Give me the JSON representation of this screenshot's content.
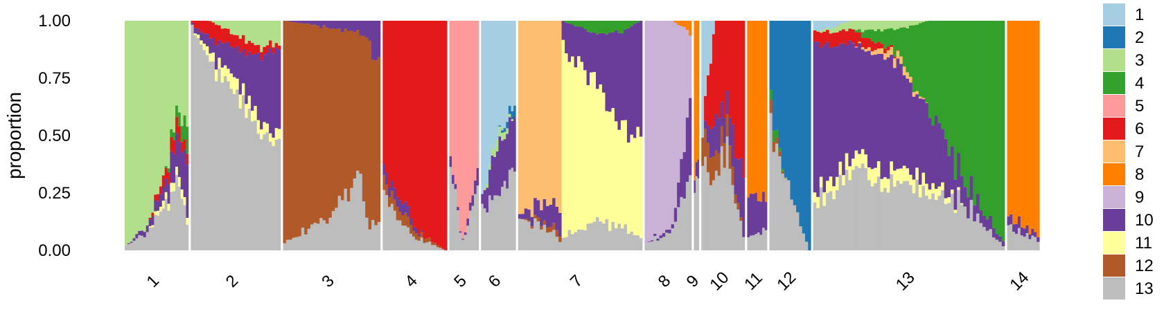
{
  "chart_data": {
    "type": "area",
    "ylabel": "proportion",
    "ylim": [
      0,
      1
    ],
    "yticks": [
      "0.00",
      "0.25",
      "0.50",
      "0.75",
      "1.00"
    ],
    "stack_order": [
      "13",
      "12",
      "11",
      "10",
      "9",
      "8",
      "7",
      "6",
      "5",
      "4",
      "3",
      "2",
      "1"
    ],
    "legend": {
      "position": "right",
      "entries": [
        {
          "label": "1",
          "color": "#a6cee3"
        },
        {
          "label": "2",
          "color": "#1f78b4"
        },
        {
          "label": "3",
          "color": "#b2df8a"
        },
        {
          "label": "4",
          "color": "#33a02c"
        },
        {
          "label": "5",
          "color": "#fb9a99"
        },
        {
          "label": "6",
          "color": "#e31a1c"
        },
        {
          "label": "7",
          "color": "#fdbf6f"
        },
        {
          "label": "8",
          "color": "#ff7f00"
        },
        {
          "label": "9",
          "color": "#cab2d6"
        },
        {
          "label": "10",
          "color": "#6a3d9a"
        },
        {
          "label": "11",
          "color": "#ffff99"
        },
        {
          "label": "12",
          "color": "#b15928"
        },
        {
          "label": "13",
          "color": "#bdbdbd"
        }
      ]
    },
    "groups": [
      {
        "label": "1",
        "weight": 95,
        "n": 24,
        "profiles": [
          {
            "f": 0.0,
            "p": {
              "13": 0.02,
              "3": 0.98
            }
          },
          {
            "f": 0.35,
            "p": {
              "13": 0.08,
              "10": 0.03,
              "3": 0.89
            }
          },
          {
            "f": 0.6,
            "p": {
              "13": 0.18,
              "11": 0.03,
              "10": 0.06,
              "6": 0.05,
              "3": 0.68
            }
          },
          {
            "f": 0.85,
            "p": {
              "13": 0.28,
              "11": 0.04,
              "10": 0.15,
              "6": 0.06,
              "4": 0.05,
              "3": 0.42
            }
          },
          {
            "f": 1.0,
            "p": {
              "13": 0.12,
              "11": 0.03,
              "10": 0.2,
              "6": 0.05,
              "4": 0.1,
              "3": 0.5
            }
          }
        ]
      },
      {
        "label": "2",
        "weight": 134,
        "n": 30,
        "profiles": [
          {
            "f": 0.0,
            "p": {
              "13": 0.98,
              "10": 0.01,
              "6": 0.01
            }
          },
          {
            "f": 0.2,
            "p": {
              "13": 0.82,
              "11": 0.04,
              "10": 0.06,
              "6": 0.08
            }
          },
          {
            "f": 0.5,
            "p": {
              "13": 0.68,
              "11": 0.06,
              "10": 0.14,
              "6": 0.06,
              "3": 0.06
            }
          },
          {
            "f": 0.8,
            "p": {
              "13": 0.52,
              "11": 0.05,
              "10": 0.27,
              "6": 0.04,
              "3": 0.12
            }
          },
          {
            "f": 1.0,
            "p": {
              "13": 0.44,
              "11": 0.04,
              "10": 0.4,
              "6": 0.02,
              "3": 0.1
            }
          }
        ]
      },
      {
        "label": "3",
        "weight": 145,
        "n": 32,
        "profiles": [
          {
            "f": 0.0,
            "p": {
              "13": 0.03,
              "12": 0.97
            }
          },
          {
            "f": 0.5,
            "p": {
              "13": 0.15,
              "12": 0.82,
              "10": 0.03
            }
          },
          {
            "f": 0.78,
            "p": {
              "13": 0.35,
              "12": 0.6,
              "10": 0.05
            }
          },
          {
            "f": 0.9,
            "p": {
              "13": 0.12,
              "12": 0.78,
              "10": 0.1
            }
          },
          {
            "f": 1.0,
            "p": {
              "13": 0.12,
              "12": 0.7,
              "10": 0.18
            }
          }
        ]
      },
      {
        "label": "4",
        "weight": 96,
        "n": 24,
        "profiles": [
          {
            "f": 0.0,
            "p": {
              "13": 0.25,
              "12": 0.05,
              "10": 0.05,
              "6": 0.65
            }
          },
          {
            "f": 0.3,
            "p": {
              "13": 0.1,
              "12": 0.05,
              "10": 0.05,
              "6": 0.8
            }
          },
          {
            "f": 0.65,
            "p": {
              "13": 0.04,
              "12": 0.02,
              "6": 0.94
            }
          },
          {
            "f": 1.0,
            "p": {
              "13": 0.0,
              "6": 1.0
            }
          }
        ]
      },
      {
        "label": "5",
        "weight": 44,
        "n": 12,
        "profiles": [
          {
            "f": 0.0,
            "p": {
              "13": 0.4,
              "10": 0.05,
              "5": 0.55
            }
          },
          {
            "f": 0.4,
            "p": {
              "13": 0.05,
              "5": 0.95
            }
          },
          {
            "f": 0.7,
            "p": {
              "13": 0.12,
              "10": 0.03,
              "5": 0.85
            }
          },
          {
            "f": 1.0,
            "p": {
              "13": 0.3,
              "10": 0.08,
              "5": 0.62
            }
          }
        ]
      },
      {
        "label": "6",
        "weight": 52,
        "n": 14,
        "profiles": [
          {
            "f": 0.0,
            "p": {
              "13": 0.2,
              "10": 0.05,
              "1": 0.75
            }
          },
          {
            "f": 0.5,
            "p": {
              "13": 0.25,
              "10": 0.2,
              "3": 0.05,
              "1": 0.5
            }
          },
          {
            "f": 1.0,
            "p": {
              "13": 0.35,
              "10": 0.2,
              "2": 0.05,
              "1": 0.4
            }
          }
        ]
      },
      {
        "label": "7",
        "weight": 185,
        "n": 40,
        "profiles": [
          {
            "f": 0.0,
            "p": {
              "13": 0.15,
              "10": 0.02,
              "7": 0.83
            }
          },
          {
            "f": 0.34,
            "p": {
              "13": 0.05,
              "12": 0.03,
              "10": 0.12,
              "7": 0.8
            }
          },
          {
            "f": 0.35,
            "p": {
              "13": 0.05,
              "11": 0.85,
              "10": 0.1
            }
          },
          {
            "f": 0.6,
            "p": {
              "13": 0.12,
              "11": 0.63,
              "10": 0.2,
              "4": 0.05
            }
          },
          {
            "f": 0.85,
            "p": {
              "13": 0.1,
              "11": 0.45,
              "10": 0.4,
              "4": 0.05
            }
          },
          {
            "f": 1.0,
            "p": {
              "13": 0.05,
              "11": 0.45,
              "10": 0.5
            }
          }
        ]
      },
      {
        "label": "8",
        "weight": 70,
        "n": 16,
        "profiles": [
          {
            "f": 0.0,
            "p": {
              "13": 0.03,
              "9": 0.97
            }
          },
          {
            "f": 0.6,
            "p": {
              "13": 0.08,
              "10": 0.02,
              "9": 0.9
            }
          },
          {
            "f": 1.0,
            "p": {
              "13": 0.35,
              "10": 0.3,
              "8": 0.05,
              "9": 0.3
            }
          }
        ]
      },
      {
        "label": "9",
        "weight": 8,
        "n": 3,
        "profiles": [
          {
            "f": 0.0,
            "p": {
              "13": 0.25,
              "10": 0.05,
              "8": 0.7
            }
          },
          {
            "f": 1.0,
            "p": {
              "13": 0.3,
              "10": 0.1,
              "8": 0.6
            }
          }
        ]
      },
      {
        "label": "10",
        "weight": 65,
        "n": 16,
        "profiles": [
          {
            "f": 0.0,
            "p": {
              "13": 0.35,
              "12": 0.15,
              "1": 0.5
            }
          },
          {
            "f": 0.3,
            "p": {
              "13": 0.3,
              "12": 0.1,
              "10": 0.15,
              "6": 0.45
            }
          },
          {
            "f": 0.6,
            "p": {
              "13": 0.45,
              "12": 0.1,
              "10": 0.1,
              "6": 0.35
            }
          },
          {
            "f": 1.0,
            "p": {
              "13": 0.05,
              "10": 0.25,
              "6": 0.7
            }
          }
        ]
      },
      {
        "label": "11",
        "weight": 30,
        "n": 8,
        "profiles": [
          {
            "f": 0.0,
            "p": {
              "13": 0.05,
              "10": 0.15,
              "8": 0.8
            }
          },
          {
            "f": 1.0,
            "p": {
              "13": 0.1,
              "10": 0.15,
              "8": 0.75
            }
          }
        ]
      },
      {
        "label": "12",
        "weight": 62,
        "n": 14,
        "profiles": [
          {
            "f": 0.0,
            "p": {
              "13": 0.55,
              "12": 0.05,
              "4": 0.05,
              "2": 0.35
            }
          },
          {
            "f": 0.4,
            "p": {
              "13": 0.28,
              "2": 0.72
            }
          },
          {
            "f": 1.0,
            "p": {
              "13": 0.0,
              "2": 1.0
            }
          }
        ]
      },
      {
        "label": "13",
        "weight": 285,
        "n": 60,
        "profiles": [
          {
            "f": 0.0,
            "p": {
              "13": 0.2,
              "11": 0.05,
              "10": 0.65,
              "6": 0.05,
              "1": 0.05
            }
          },
          {
            "f": 0.2,
            "p": {
              "13": 0.32,
              "11": 0.06,
              "10": 0.52,
              "6": 0.06,
              "3": 0.04
            }
          },
          {
            "f": 0.45,
            "p": {
              "13": 0.3,
              "11": 0.06,
              "10": 0.45,
              "7": 0.04,
              "3": 0.04,
              "4": 0.11
            }
          },
          {
            "f": 0.6,
            "p": {
              "13": 0.25,
              "11": 0.05,
              "10": 0.3,
              "4": 0.4
            }
          },
          {
            "f": 0.8,
            "p": {
              "13": 0.2,
              "10": 0.1,
              "4": 0.7
            }
          },
          {
            "f": 1.0,
            "p": {
              "13": 0.02,
              "10": 0.02,
              "4": 0.96
            }
          }
        ]
      },
      {
        "label": "14",
        "weight": 48,
        "n": 12,
        "profiles": [
          {
            "f": 0.0,
            "p": {
              "13": 0.1,
              "10": 0.05,
              "8": 0.85
            }
          },
          {
            "f": 1.0,
            "p": {
              "13": 0.04,
              "10": 0.02,
              "8": 0.94
            }
          }
        ]
      }
    ]
  }
}
